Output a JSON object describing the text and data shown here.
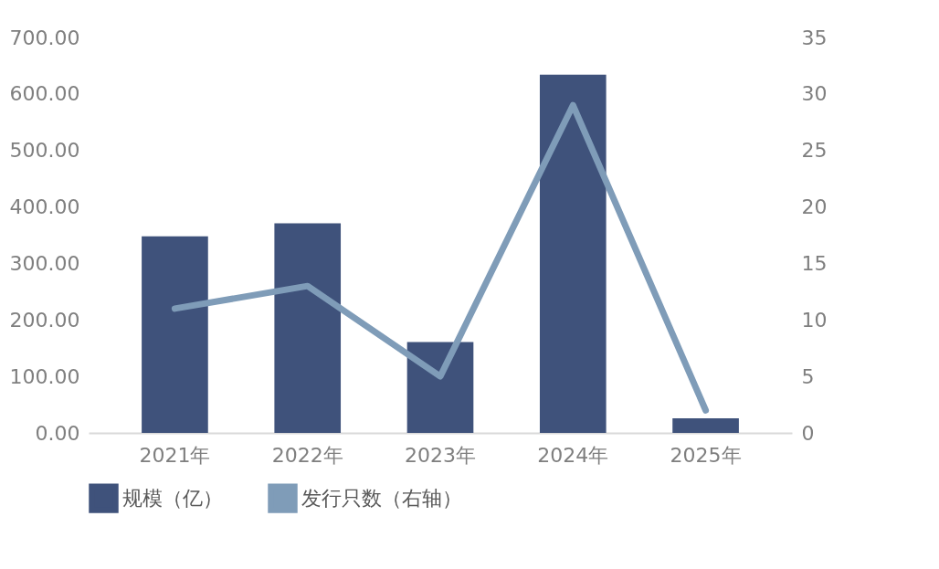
{
  "chart_data": {
    "type": "bar",
    "categories": [
      "2021年",
      "2022年",
      "2023年",
      "2024年",
      "2025年"
    ],
    "series": [
      {
        "name": "规模（亿）",
        "color": "#3f527b",
        "values": [
          348,
          371,
          161,
          634,
          26
        ]
      },
      {
        "name": "发行只数（右轴）",
        "type": "line",
        "axis": "y2",
        "color": "#7f9cb8",
        "values": [
          11,
          13,
          5,
          29,
          2
        ]
      }
    ],
    "ylim": [
      0,
      700
    ],
    "yticks": [
      {
        "value": 0,
        "label": "0.00"
      },
      {
        "value": 100,
        "label": "100.00"
      },
      {
        "value": 200,
        "label": "200.00"
      },
      {
        "value": 300,
        "label": "300.00"
      },
      {
        "value": 400,
        "label": "400.00"
      },
      {
        "value": 500,
        "label": "500.00"
      },
      {
        "value": 600,
        "label": "600.00"
      },
      {
        "value": 700,
        "label": "700.00"
      }
    ],
    "y2lim": [
      0,
      35
    ],
    "y2ticks": [
      0,
      5,
      10,
      15,
      20,
      25,
      30,
      35
    ],
    "grid": false,
    "legend": "bottom"
  }
}
